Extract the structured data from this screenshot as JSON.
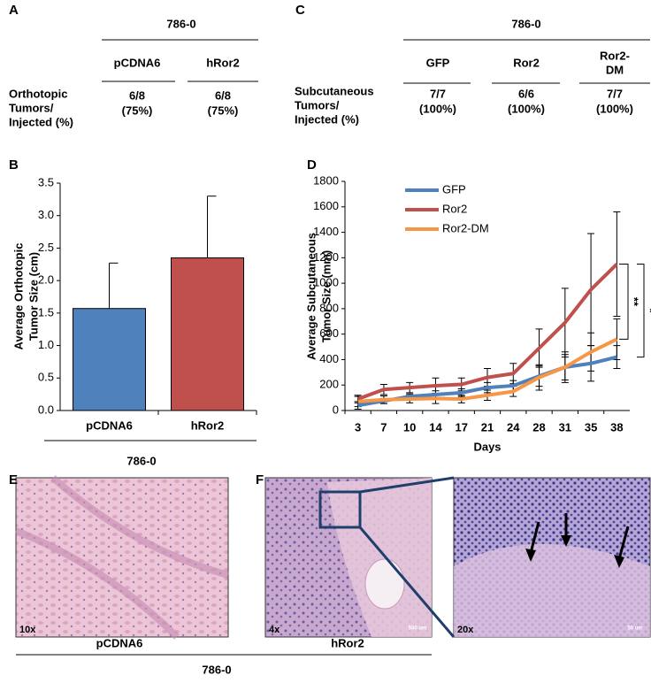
{
  "panels": {
    "A": {
      "label": "A",
      "group": "786-0",
      "columns": [
        "pCDNA6",
        "hRor2"
      ],
      "row_label": [
        "Orthotopic",
        "Tumors/",
        "Injected (%)"
      ],
      "cells": [
        [
          "6/8",
          "(75%)"
        ],
        [
          "6/8",
          "(75%)"
        ]
      ]
    },
    "B": {
      "label": "B",
      "group": "786-0"
    },
    "C": {
      "label": "C",
      "group": "786-0",
      "columns": [
        [
          "GFP"
        ],
        [
          "Ror2"
        ],
        [
          "Ror2-",
          "DM"
        ]
      ],
      "row_label": [
        "Subcutaneous",
        "Tumors/",
        "Injected (%)"
      ],
      "cells": [
        [
          "7/7",
          "(100%)"
        ],
        [
          "6/6",
          "(100%)"
        ],
        [
          "7/7",
          "(100%)"
        ]
      ]
    },
    "D": {
      "label": "D"
    },
    "E": {
      "label": "E",
      "magnification": "10x",
      "caption": "pCDNA6"
    },
    "F": {
      "label": "F",
      "magnification": [
        "4x",
        "20x"
      ],
      "scale": [
        "500 um",
        "50 um"
      ],
      "caption": "hRor2"
    },
    "EF_group": "786-0"
  },
  "chart_data": [
    {
      "type": "bar",
      "y_label": [
        "Average Orthotopic",
        "Tumor Size (cm)"
      ],
      "categories": [
        "pCDNA6",
        "hRor2"
      ],
      "values": [
        1.57,
        2.35
      ],
      "errors": [
        0.7,
        0.95
      ],
      "colors": [
        "#4f81bd",
        "#c0504d"
      ],
      "ylim": [
        0,
        3.5
      ],
      "yticks": [
        {
          "value": 0,
          "label": "0.0"
        },
        {
          "value": 0.5,
          "label": "0.5"
        },
        {
          "value": 1,
          "label": "1.0"
        },
        {
          "value": 1.5,
          "label": "1.5"
        },
        {
          "value": 2,
          "label": "2.0"
        },
        {
          "value": 2.5,
          "label": "2.5"
        },
        {
          "value": 3,
          "label": "3.0"
        },
        {
          "value": 3.5,
          "label": "3.5"
        }
      ]
    },
    {
      "type": "line",
      "x_label": "Days",
      "y_label": [
        "Average Subcutaneous",
        "Tumor Size (mm)"
      ],
      "categories": [
        "3",
        "7",
        "10",
        "14",
        "17",
        "21",
        "24",
        "28",
        "31",
        "35",
        "38"
      ],
      "series": [
        {
          "name": "GFP",
          "color": "#4f81bd",
          "values": [
            40,
            75,
            110,
            125,
            140,
            180,
            195,
            270,
            340,
            370,
            420
          ],
          "errors": [
            30,
            20,
            20,
            30,
            30,
            40,
            40,
            80,
            120,
            140,
            90
          ]
        },
        {
          "name": "Ror2",
          "color": "#c0504d",
          "values": [
            90,
            165,
            180,
            195,
            205,
            260,
            290,
            490,
            690,
            950,
            1150
          ],
          "errors": [
            30,
            40,
            40,
            60,
            50,
            70,
            80,
            150,
            270,
            440,
            410
          ]
        },
        {
          "name": "Ror2-DM",
          "color": "#f79646",
          "values": [
            70,
            85,
            90,
            95,
            90,
            120,
            150,
            260,
            340,
            460,
            560
          ],
          "errors": [
            40,
            30,
            30,
            40,
            30,
            40,
            40,
            100,
            100,
            150,
            160
          ]
        }
      ],
      "ylim": [
        0,
        1800
      ],
      "yticks": [
        0,
        200,
        400,
        600,
        800,
        1000,
        1200,
        1400,
        1600,
        1800
      ],
      "significance": [
        "**",
        "*"
      ]
    }
  ]
}
